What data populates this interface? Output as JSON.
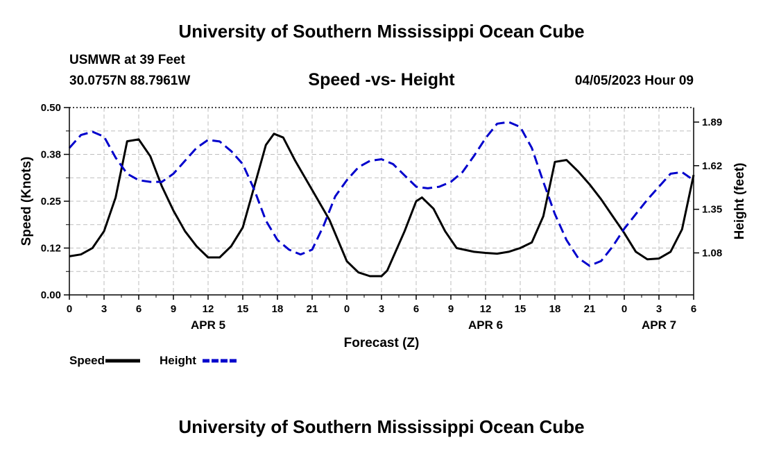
{
  "header": {
    "title": "University of Southern Mississippi Ocean Cube",
    "station": "USMWR at 39 Feet",
    "location": "30.0757N  88.7961W",
    "datetime": "04/05/2023 Hour 09"
  },
  "footer": {
    "title": "University of Southern Mississippi Ocean Cube"
  },
  "chart_data": {
    "type": "line",
    "title": "Speed -vs- Height",
    "xlabel": "Forecast (Z)",
    "ylabel": "Speed (Knots)",
    "y2label": "Height (feet)",
    "xlim": [
      0,
      54
    ],
    "ylim": [
      0,
      0.5
    ],
    "y2lim": [
      0.82,
      1.98
    ],
    "x_ticks": [
      0,
      3,
      6,
      9,
      12,
      15,
      18,
      21,
      24,
      27,
      30,
      33,
      36,
      39,
      42,
      45,
      48,
      51,
      54
    ],
    "x_tick_labels": [
      "0",
      "3",
      "6",
      "9",
      "12",
      "15",
      "18",
      "21",
      "0",
      "3",
      "6",
      "9",
      "12",
      "15",
      "18",
      "21",
      "0",
      "3",
      "6"
    ],
    "y_ticks": [
      0,
      0.125,
      0.25,
      0.375,
      0.5
    ],
    "y_tick_labels": [
      "0.00",
      "0.12",
      "0.25",
      "0.38",
      "0.50"
    ],
    "y2_ticks": [
      1.08,
      1.35,
      1.62,
      1.89
    ],
    "y2_tick_labels": [
      "1.08",
      "1.35",
      "1.62",
      "1.89"
    ],
    "day_labels": [
      {
        "x": 12,
        "label": "APR 5"
      },
      {
        "x": 36,
        "label": "APR 6"
      },
      {
        "x": 51,
        "label": "APR 7"
      }
    ],
    "grid": true,
    "legend_position": "bottom-left",
    "series": [
      {
        "name": "Speed",
        "axis": "left",
        "color": "#000000",
        "style": "solid",
        "points": [
          [
            0,
            0.103
          ],
          [
            1,
            0.108
          ],
          [
            2,
            0.125
          ],
          [
            3,
            0.17
          ],
          [
            4,
            0.26
          ],
          [
            5,
            0.41
          ],
          [
            6,
            0.415
          ],
          [
            7,
            0.37
          ],
          [
            8,
            0.29
          ],
          [
            9,
            0.225
          ],
          [
            10,
            0.17
          ],
          [
            11,
            0.13
          ],
          [
            12,
            0.1
          ],
          [
            13,
            0.1
          ],
          [
            14,
            0.13
          ],
          [
            15,
            0.18
          ],
          [
            16,
            0.29
          ],
          [
            17,
            0.4
          ],
          [
            17.7,
            0.43
          ],
          [
            18.5,
            0.42
          ],
          [
            19.5,
            0.36
          ],
          [
            21,
            0.28
          ],
          [
            22.5,
            0.2
          ],
          [
            24,
            0.09
          ],
          [
            25,
            0.06
          ],
          [
            26,
            0.05
          ],
          [
            27,
            0.05
          ],
          [
            27.5,
            0.065
          ],
          [
            29,
            0.17
          ],
          [
            30,
            0.25
          ],
          [
            30.5,
            0.26
          ],
          [
            31.5,
            0.23
          ],
          [
            32.5,
            0.17
          ],
          [
            33.5,
            0.125
          ],
          [
            35,
            0.115
          ],
          [
            36,
            0.112
          ],
          [
            37,
            0.11
          ],
          [
            38,
            0.115
          ],
          [
            39,
            0.125
          ],
          [
            40,
            0.14
          ],
          [
            41,
            0.21
          ],
          [
            42,
            0.355
          ],
          [
            43,
            0.36
          ],
          [
            44,
            0.33
          ],
          [
            45,
            0.295
          ],
          [
            46,
            0.255
          ],
          [
            47,
            0.21
          ],
          [
            48,
            0.165
          ],
          [
            49,
            0.115
          ],
          [
            50,
            0.095
          ],
          [
            51,
            0.097
          ],
          [
            52,
            0.115
          ],
          [
            53,
            0.175
          ],
          [
            54,
            0.32
          ]
        ]
      },
      {
        "name": "Height",
        "axis": "right",
        "color": "#0000cc",
        "style": "dashed",
        "points": [
          [
            0,
            1.73
          ],
          [
            1,
            1.81
          ],
          [
            2,
            1.83
          ],
          [
            3,
            1.8
          ],
          [
            4,
            1.67
          ],
          [
            5,
            1.57
          ],
          [
            6,
            1.53
          ],
          [
            7,
            1.52
          ],
          [
            8,
            1.52
          ],
          [
            9,
            1.57
          ],
          [
            10,
            1.65
          ],
          [
            11,
            1.73
          ],
          [
            12,
            1.78
          ],
          [
            13,
            1.77
          ],
          [
            14,
            1.71
          ],
          [
            15,
            1.63
          ],
          [
            16,
            1.47
          ],
          [
            17,
            1.28
          ],
          [
            18,
            1.16
          ],
          [
            19,
            1.1
          ],
          [
            20,
            1.07
          ],
          [
            21,
            1.1
          ],
          [
            22,
            1.25
          ],
          [
            23,
            1.43
          ],
          [
            24,
            1.53
          ],
          [
            25,
            1.61
          ],
          [
            26,
            1.65
          ],
          [
            27,
            1.66
          ],
          [
            28,
            1.63
          ],
          [
            29,
            1.56
          ],
          [
            30,
            1.49
          ],
          [
            31,
            1.48
          ],
          [
            32,
            1.49
          ],
          [
            33,
            1.52
          ],
          [
            34,
            1.58
          ],
          [
            35,
            1.68
          ],
          [
            36,
            1.79
          ],
          [
            37,
            1.88
          ],
          [
            38,
            1.89
          ],
          [
            39,
            1.86
          ],
          [
            40,
            1.73
          ],
          [
            41,
            1.52
          ],
          [
            42,
            1.32
          ],
          [
            43,
            1.16
          ],
          [
            44,
            1.05
          ],
          [
            45,
            1.0
          ],
          [
            46,
            1.03
          ],
          [
            47,
            1.12
          ],
          [
            48,
            1.23
          ],
          [
            49,
            1.32
          ],
          [
            50,
            1.41
          ],
          [
            51,
            1.49
          ],
          [
            52,
            1.57
          ],
          [
            53,
            1.58
          ],
          [
            54,
            1.53
          ]
        ]
      }
    ]
  }
}
